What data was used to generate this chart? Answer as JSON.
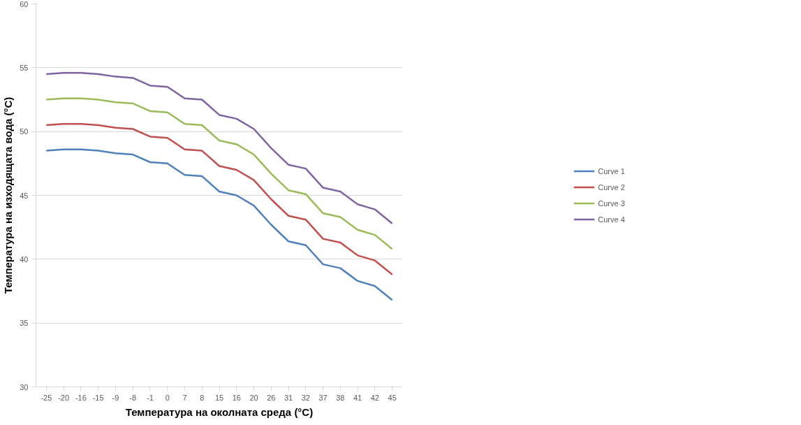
{
  "chart_data": {
    "type": "line",
    "xlabel": "Температура на околната среда (°C)",
    "ylabel": "Температура на изходящата вода (°C)",
    "categories": [
      "-25",
      "-20",
      "-16",
      "-15",
      "-9",
      "-8",
      "-1",
      "0",
      "7",
      "8",
      "15",
      "16",
      "20",
      "26",
      "31",
      "32",
      "37",
      "38",
      "41",
      "42",
      "45"
    ],
    "series": [
      {
        "name": "Curve 1",
        "color": "#4f81bd",
        "values": [
          48.5,
          48.6,
          48.6,
          48.5,
          48.3,
          48.2,
          47.6,
          47.5,
          46.6,
          46.5,
          45.3,
          45.0,
          44.2,
          42.7,
          41.4,
          41.1,
          39.6,
          39.3,
          38.3,
          37.9,
          36.8
        ]
      },
      {
        "name": "Curve 2",
        "color": "#c0504d",
        "values": [
          50.5,
          50.6,
          50.6,
          50.5,
          50.3,
          50.2,
          49.6,
          49.5,
          48.6,
          48.5,
          47.3,
          47.0,
          46.2,
          44.7,
          43.4,
          43.1,
          41.6,
          41.3,
          40.3,
          39.9,
          38.8
        ]
      },
      {
        "name": "Curve 3",
        "color": "#9bbb59",
        "values": [
          52.5,
          52.6,
          52.6,
          52.5,
          52.3,
          52.2,
          51.6,
          51.5,
          50.6,
          50.5,
          49.3,
          49.0,
          48.2,
          46.7,
          45.4,
          45.1,
          43.6,
          43.3,
          42.3,
          41.9,
          40.8
        ]
      },
      {
        "name": "Curve 4",
        "color": "#8064a2",
        "values": [
          54.5,
          54.6,
          54.6,
          54.5,
          54.3,
          54.2,
          53.6,
          53.5,
          52.6,
          52.5,
          51.3,
          51.0,
          50.2,
          48.7,
          47.4,
          47.1,
          45.6,
          45.3,
          44.3,
          43.9,
          42.8
        ]
      }
    ],
    "ylim": [
      30,
      60
    ],
    "yticks": [
      30,
      35,
      40,
      45,
      50,
      55,
      60
    ],
    "grid": "y",
    "legend": "right",
    "marker": "none",
    "line_style": "solid"
  }
}
